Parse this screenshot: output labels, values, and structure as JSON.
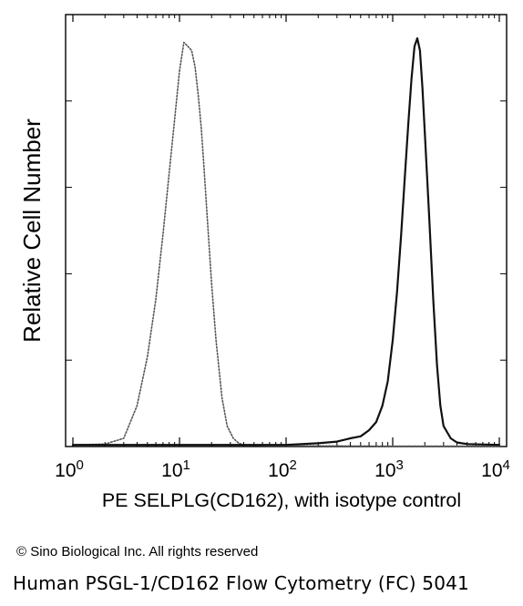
{
  "chart_data": {
    "type": "histogram",
    "xscale": "log",
    "xlim": [
      1,
      10000
    ],
    "ylim": [
      0,
      1
    ],
    "xlabel": "PE SELPLG(CD162), with isotype control",
    "ylabel": "Relative Cell Number",
    "x_ticks": [
      {
        "value": 1,
        "base": "10",
        "exp": "0"
      },
      {
        "value": 10,
        "base": "10",
        "exp": "1"
      },
      {
        "value": 100,
        "base": "10",
        "exp": "2"
      },
      {
        "value": 1000,
        "base": "10",
        "exp": "3"
      },
      {
        "value": 10000,
        "base": "10",
        "exp": "4"
      }
    ],
    "grid": false,
    "series": [
      {
        "style": "dotted",
        "color": "#555555",
        "x": [
          1,
          2,
          3,
          4,
          5,
          6,
          7,
          8,
          9,
          10,
          11,
          12,
          13,
          14,
          15,
          16,
          17,
          18,
          20,
          22,
          25,
          28,
          32,
          36,
          40,
          50,
          70,
          100,
          1000,
          10000
        ],
        "y": [
          0.004,
          0.006,
          0.02,
          0.1,
          0.22,
          0.36,
          0.52,
          0.67,
          0.8,
          0.92,
          0.99,
          0.98,
          0.97,
          0.93,
          0.86,
          0.78,
          0.68,
          0.58,
          0.4,
          0.26,
          0.12,
          0.05,
          0.02,
          0.008,
          0.004,
          0.003,
          0.002,
          0.002,
          0.001,
          0.001
        ]
      },
      {
        "style": "solid",
        "color": "#111111",
        "x": [
          1,
          100,
          200,
          300,
          400,
          500,
          600,
          700,
          800,
          900,
          1000,
          1100,
          1200,
          1300,
          1400,
          1500,
          1600,
          1700,
          1800,
          1900,
          2000,
          2200,
          2400,
          2600,
          2800,
          3000,
          3500,
          4000,
          5000,
          10000
        ],
        "y": [
          0.004,
          0.004,
          0.008,
          0.012,
          0.02,
          0.025,
          0.04,
          0.06,
          0.1,
          0.16,
          0.26,
          0.38,
          0.52,
          0.66,
          0.79,
          0.9,
          0.98,
          1.0,
          0.97,
          0.88,
          0.77,
          0.56,
          0.36,
          0.2,
          0.1,
          0.05,
          0.02,
          0.01,
          0.006,
          0.004
        ]
      }
    ]
  },
  "footer": {
    "copyright": "© Sino Biological Inc. All rights reserved",
    "caption": "Human PSGL-1/CD162 Flow Cytometry (FC) 5041"
  }
}
